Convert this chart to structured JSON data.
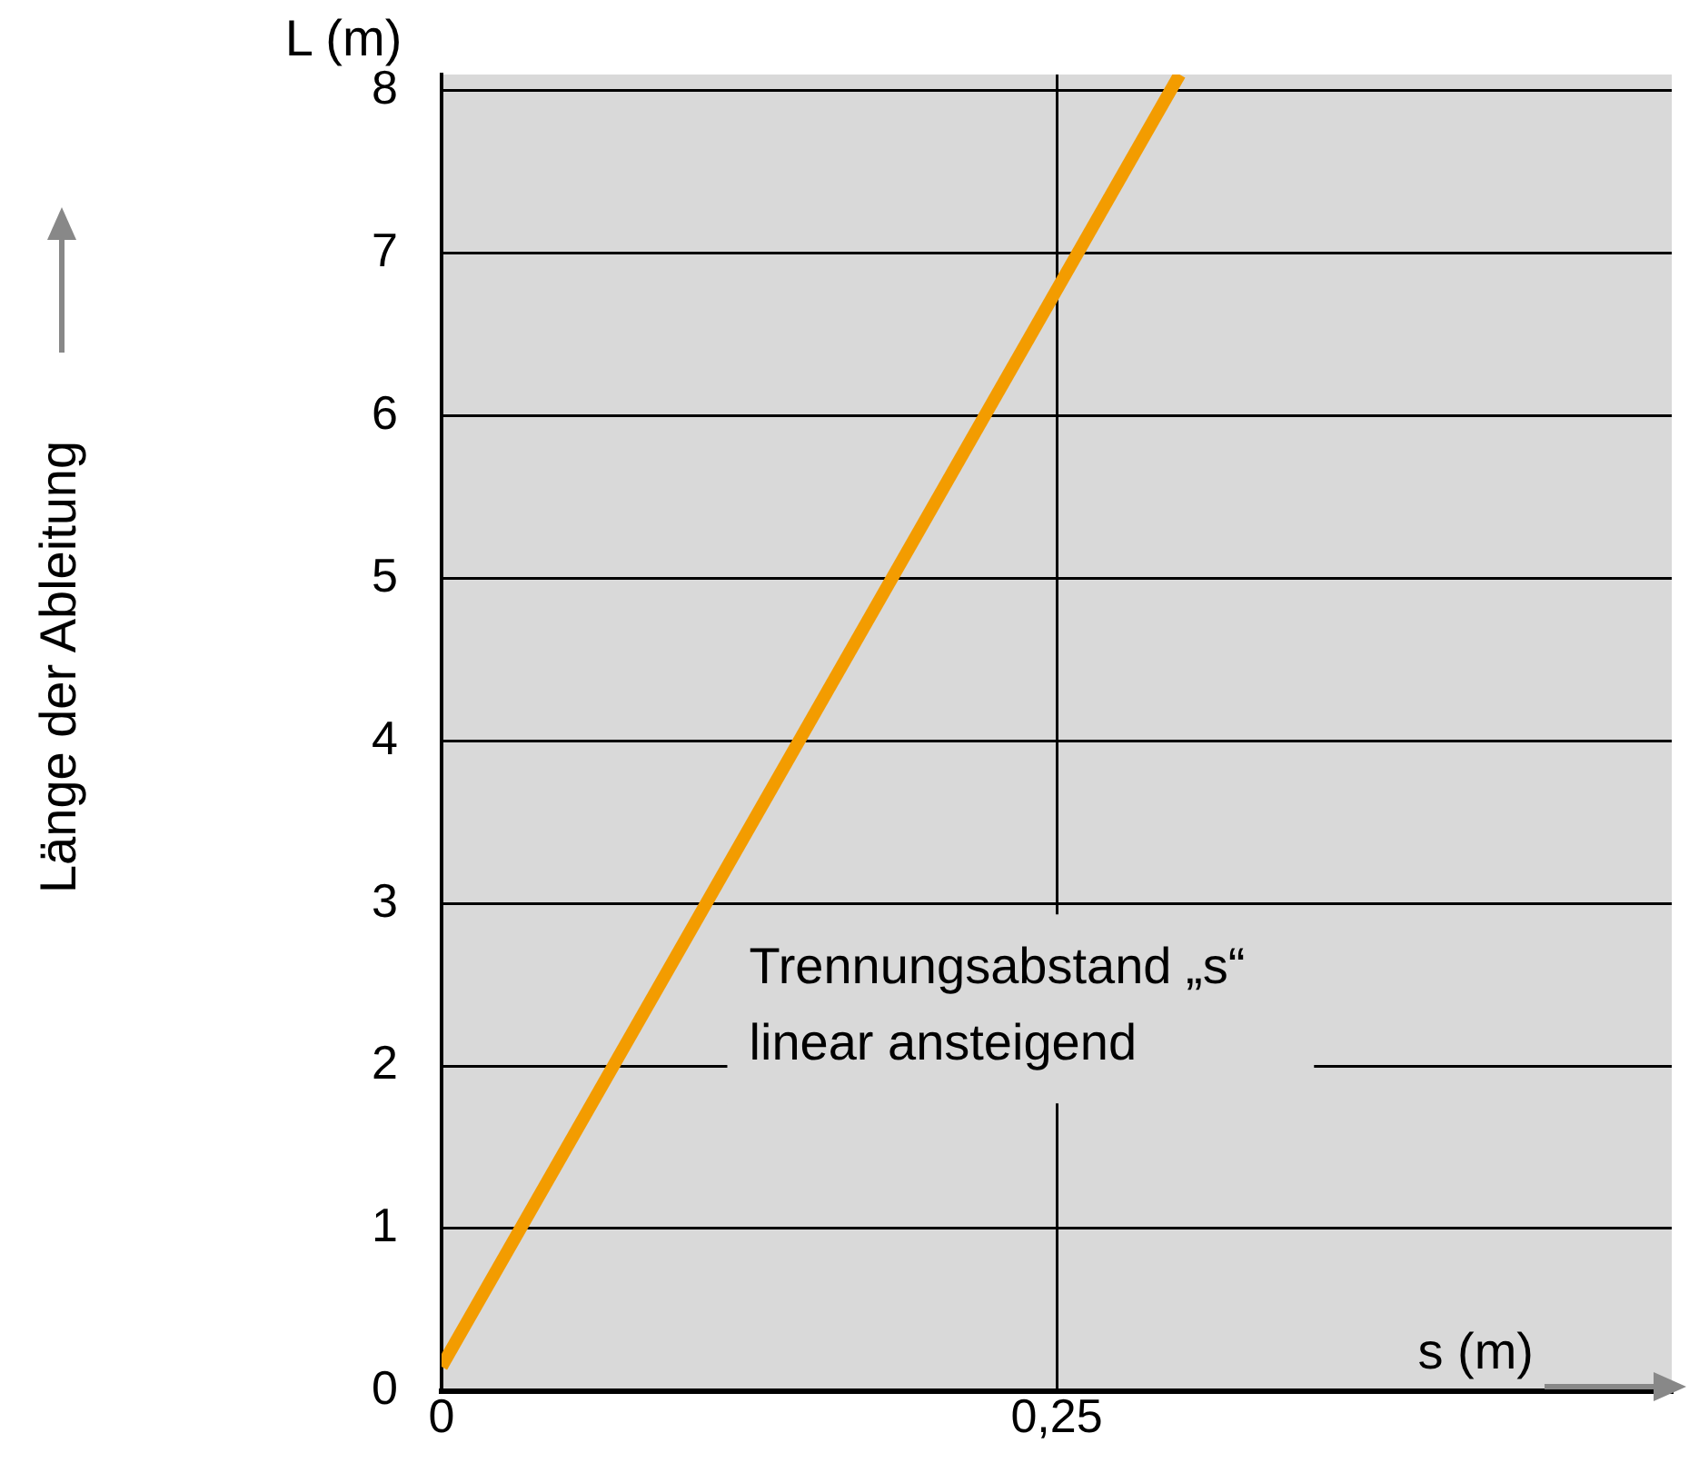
{
  "chart_data": {
    "type": "line",
    "xlabel": "s (m)",
    "ylabel": "L (m)",
    "annotations": [
      "Länge der Ableitung",
      "Trennungsabstand „s“\nlinear ansteigend"
    ],
    "x": [
      0,
      0.3
    ],
    "series": [
      {
        "color": "#f39c00",
        "values": [
          0.15,
          8.1
        ]
      }
    ],
    "xlim": [
      0,
      0.5
    ],
    "xticks": [
      0,
      {
        "value": 0.25,
        "label": "0,25"
      }
    ],
    "ylim": [
      0,
      8.1
    ],
    "yticks": [
      0,
      1,
      2,
      3,
      4,
      5,
      6,
      7,
      8
    ],
    "grid": true,
    "legend": false,
    "marker": "none",
    "line_style": "solid"
  }
}
